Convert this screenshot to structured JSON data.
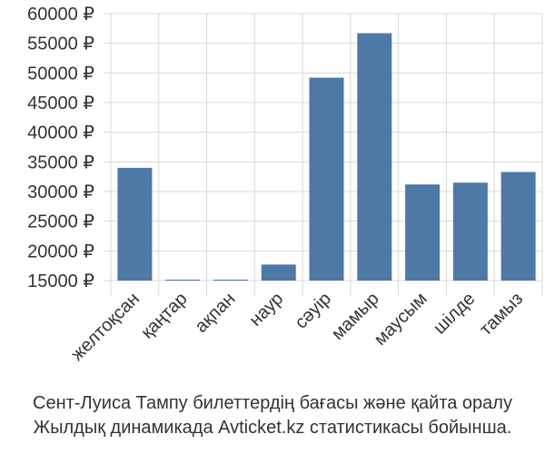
{
  "chart_data": {
    "type": "bar",
    "categories": [
      "желтоқсан",
      "қаңтар",
      "ақпан",
      "наур",
      "сәуір",
      "мамыр",
      "маусым",
      "шілде",
      "тамыз"
    ],
    "values": [
      34000,
      14800,
      14800,
      17700,
      49200,
      56700,
      31200,
      31500,
      33300
    ],
    "yticks": [
      "15000 ₽",
      "20000 ₽",
      "25000 ₽",
      "30000 ₽",
      "35000 ₽",
      "40000 ₽",
      "45000 ₽",
      "50000 ₽",
      "55000 ₽",
      "60000 ₽"
    ],
    "ylim": [
      15000,
      60000
    ],
    "grid": true,
    "bar_color": "#4e79a7"
  },
  "caption": {
    "line1": "Сент-Луиса Тампу билеттердің бағасы және қайта оралу",
    "line2": "Жылдық динамикада Avticket.kz статистикасы бойынша."
  }
}
